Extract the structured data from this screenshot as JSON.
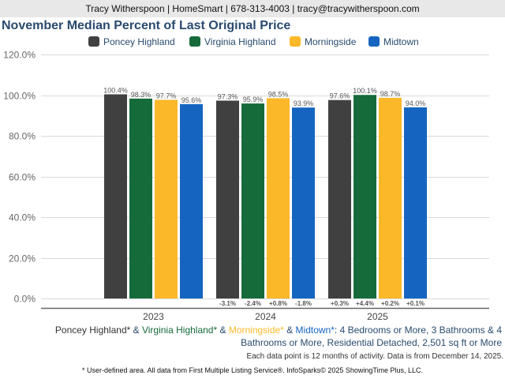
{
  "header": {
    "contact": "Tracy Witherspoon | HomeSmart | 678-313-4003 | tracy@tracywitherspoon.com"
  },
  "chart_data": {
    "type": "bar",
    "title": "November Median Percent of Last Original Price",
    "xlabel": "",
    "ylabel": "",
    "ylim": [
      0,
      120
    ],
    "yticks": [
      "0.0%",
      "20.0%",
      "40.0%",
      "60.0%",
      "80.0%",
      "100.0%",
      "120.0%"
    ],
    "ytick_values": [
      0,
      20,
      40,
      60,
      80,
      100,
      120
    ],
    "grid": true,
    "legend_position": "top-center",
    "categories": [
      "2023",
      "2024",
      "2025"
    ],
    "series": [
      {
        "name": "Poncey Highland",
        "color": "#404040",
        "values": [
          100.4,
          97.3,
          97.6
        ],
        "labels": [
          "100.4%",
          "97.3%",
          "97.6%"
        ],
        "changes": [
          "",
          "-3.1%",
          "+0.3%"
        ]
      },
      {
        "name": "Virginia Highland",
        "color": "#156b3a",
        "values": [
          98.3,
          95.9,
          100.1
        ],
        "labels": [
          "98.3%",
          "95.9%",
          "100.1%"
        ],
        "changes": [
          "",
          "-2.4%",
          "+4.4%"
        ]
      },
      {
        "name": "Morningside",
        "color": "#fbb829",
        "values": [
          97.7,
          98.5,
          98.7
        ],
        "labels": [
          "97.7%",
          "98.5%",
          "98.7%"
        ],
        "changes": [
          "",
          "+0.8%",
          "+0.2%"
        ]
      },
      {
        "name": "Midtown",
        "color": "#1565c0",
        "values": [
          95.6,
          93.9,
          94.0
        ],
        "labels": [
          "95.6%",
          "93.9%",
          "94.0%"
        ],
        "changes": [
          "",
          "-1.8%",
          "+0.1%"
        ]
      }
    ]
  },
  "criteria": {
    "areas": [
      {
        "text": "Poncey Highland*",
        "color": "#333333"
      },
      {
        "text": " & ",
        "color": "#2a4a6e"
      },
      {
        "text": "Virginia Highland*",
        "color": "#156b3a"
      },
      {
        "text": " & ",
        "color": "#2a4a6e"
      },
      {
        "text": "Morningside*",
        "color": "#fbb829"
      },
      {
        "text": " & ",
        "color": "#2a4a6e"
      },
      {
        "text": "Midtown*",
        "color": "#1565c0"
      }
    ],
    "description": ": 4 Bedrooms or More, 3 Bathrooms & 4 Bathrooms or More, Residential Detached, 2,501 sq ft or More"
  },
  "note": "Each data point is 12 months of activity. Data is from December 14, 2025.",
  "footer": "* User-defined area. All data from First Multiple Listing Service®. InfoSparks© 2025 ShowingTime Plus, LLC."
}
